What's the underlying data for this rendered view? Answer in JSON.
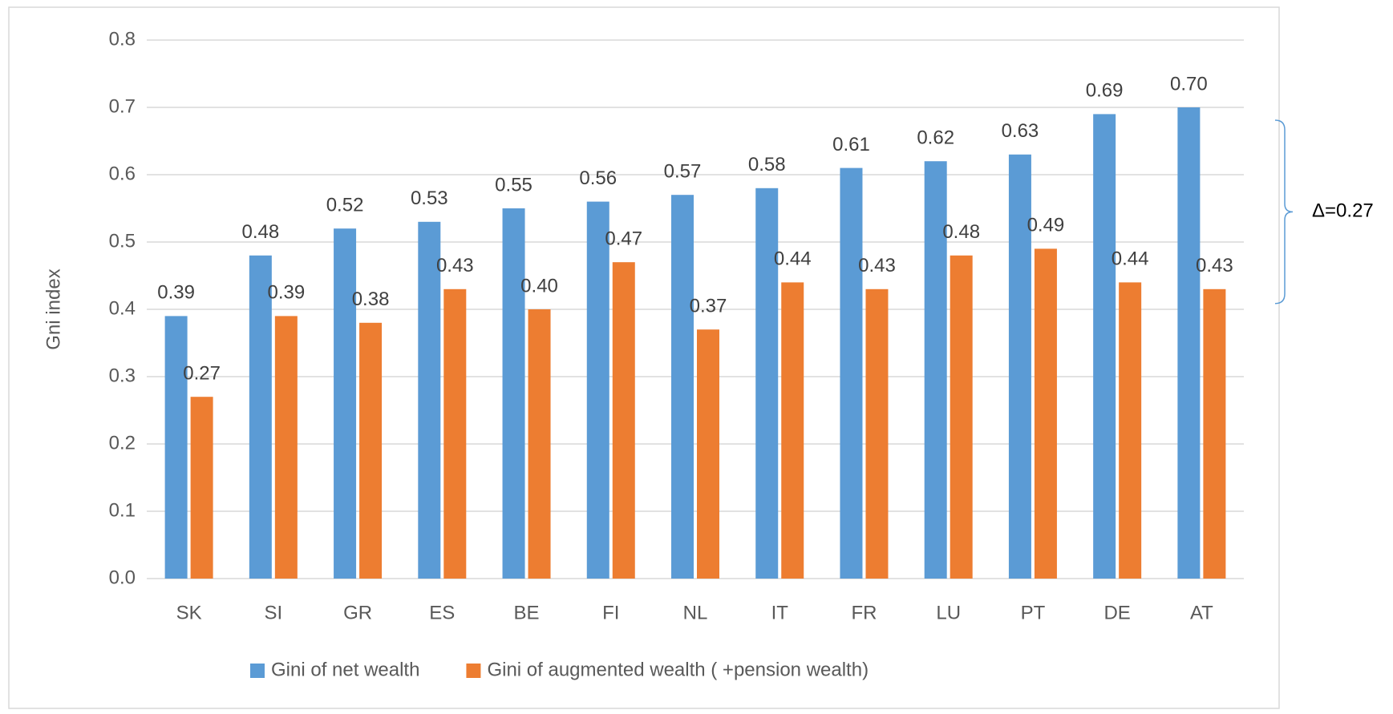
{
  "chart_data": {
    "type": "bar",
    "ylabel": "Gni index",
    "categories": [
      "SK",
      "SI",
      "GR",
      "ES",
      "BE",
      "FI",
      "NL",
      "IT",
      "FR",
      "LU",
      "PT",
      "DE",
      "AT"
    ],
    "series": [
      {
        "name": "Gini of net wealth",
        "color": "#5b9bd5",
        "values": [
          0.39,
          0.48,
          0.52,
          0.53,
          0.55,
          0.56,
          0.57,
          0.58,
          0.61,
          0.62,
          0.63,
          0.69,
          0.7
        ],
        "value_labels": [
          "0.39",
          "0.48",
          "0.52",
          "0.53",
          "0.55",
          "0.56",
          "0.57",
          "0.58",
          "0.61",
          "0.62",
          "0.63",
          "0.69",
          "0.70"
        ]
      },
      {
        "name": "Gini of augmented wealth ( +pension wealth)",
        "color": "#ed7d31",
        "values": [
          0.27,
          0.39,
          0.38,
          0.43,
          0.4,
          0.47,
          0.37,
          0.44,
          0.43,
          0.48,
          0.49,
          0.44,
          0.43
        ],
        "value_labels": [
          "0.27",
          "0.39",
          "0.38",
          "0.43",
          "0.40",
          "0.47",
          "0.37",
          "0.44",
          "0.43",
          "0.48",
          "0.49",
          "0.44",
          "0.43"
        ]
      }
    ],
    "ylim": [
      0,
      0.8
    ],
    "yticks": [
      {
        "value": 0,
        "label": "0.0"
      },
      0.1,
      0.2,
      0.3,
      0.4,
      0.5,
      0.6,
      0.7,
      0.8
    ],
    "grid": true,
    "legend": "bottom",
    "annotation": "Δ=0.27"
  }
}
